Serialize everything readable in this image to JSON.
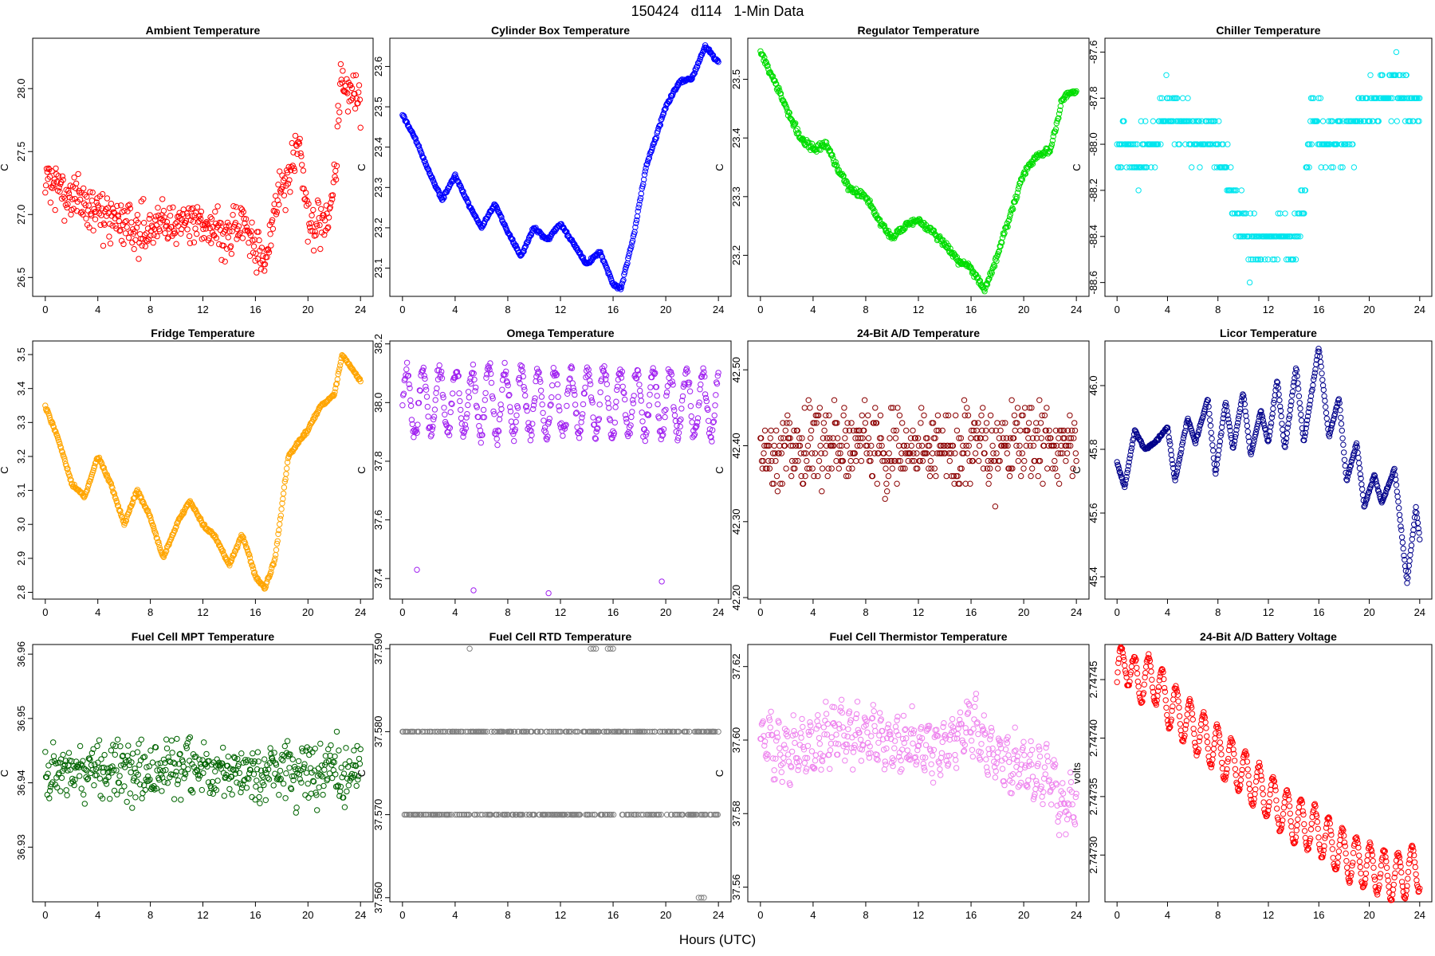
{
  "page": {
    "title": "150424   d114   1-Min Data",
    "x_axis_label": "Hours (UTC)"
  },
  "chart_data": [
    {
      "type": "scatter",
      "title": "Ambient Temperature",
      "ylabel": "C",
      "color": "#ff0000",
      "xlim": [
        0,
        24
      ],
      "xticks": [
        0,
        4,
        8,
        12,
        16,
        20,
        24
      ],
      "ylim": [
        26.35,
        28.4
      ],
      "yticks": [
        26.5,
        27.0,
        27.5,
        28.0
      ],
      "ydigits": 1,
      "anchors": [
        [
          0,
          27.3
        ],
        [
          1,
          27.2
        ],
        [
          2,
          27.15
        ],
        [
          3,
          27.1
        ],
        [
          4,
          27.0
        ],
        [
          5,
          26.95
        ],
        [
          6,
          26.95
        ],
        [
          7,
          26.9
        ],
        [
          8,
          26.9
        ],
        [
          9,
          26.95
        ],
        [
          10,
          26.9
        ],
        [
          11,
          26.95
        ],
        [
          12,
          26.95
        ],
        [
          13,
          26.9
        ],
        [
          14,
          26.85
        ],
        [
          15,
          26.9
        ],
        [
          16,
          26.75
        ],
        [
          16.8,
          26.6
        ],
        [
          17.5,
          27.1
        ],
        [
          18.5,
          27.3
        ],
        [
          19.3,
          27.6
        ],
        [
          20,
          26.95
        ],
        [
          21,
          26.9
        ],
        [
          21.6,
          27.0
        ],
        [
          22.2,
          27.5
        ],
        [
          22.5,
          28.1
        ],
        [
          23,
          27.95
        ],
        [
          24,
          27.9
        ]
      ],
      "noise": 0.18,
      "jitter": 0
    },
    {
      "type": "scatter",
      "title": "Cylinder Box Temperature",
      "ylabel": "C",
      "color": "#0000ff",
      "xlim": [
        0,
        24
      ],
      "xticks": [
        0,
        4,
        8,
        12,
        16,
        20,
        24
      ],
      "ylim": [
        23.03,
        23.67
      ],
      "yticks": [
        23.1,
        23.2,
        23.3,
        23.4,
        23.5,
        23.6
      ],
      "ydigits": 1,
      "anchors": [
        [
          0,
          23.48
        ],
        [
          1,
          23.42
        ],
        [
          2,
          23.34
        ],
        [
          3,
          23.27
        ],
        [
          4,
          23.33
        ],
        [
          5,
          23.26
        ],
        [
          6,
          23.2
        ],
        [
          7,
          23.26
        ],
        [
          8,
          23.19
        ],
        [
          9,
          23.13
        ],
        [
          10,
          23.2
        ],
        [
          11,
          23.17
        ],
        [
          12,
          23.21
        ],
        [
          13,
          23.16
        ],
        [
          14,
          23.11
        ],
        [
          15,
          23.14
        ],
        [
          16,
          23.06
        ],
        [
          16.6,
          23.05
        ],
        [
          17.5,
          23.17
        ],
        [
          18.5,
          23.35
        ],
        [
          20,
          23.5
        ],
        [
          21,
          23.56
        ],
        [
          22,
          23.57
        ],
        [
          23,
          23.65
        ],
        [
          24,
          23.61
        ]
      ],
      "noise": 0.004,
      "jitter": 0
    },
    {
      "type": "scatter",
      "title": "Regulator Temperature",
      "ylabel": "C",
      "color": "#00dd00",
      "xlim": [
        0,
        24
      ],
      "xticks": [
        0,
        4,
        8,
        12,
        16,
        20,
        24
      ],
      "ylim": [
        23.13,
        23.57
      ],
      "yticks": [
        23.2,
        23.3,
        23.4,
        23.5
      ],
      "ydigits": 1,
      "anchors": [
        [
          0,
          23.55
        ],
        [
          1,
          23.5
        ],
        [
          2,
          23.45
        ],
        [
          3,
          23.4
        ],
        [
          4,
          23.38
        ],
        [
          5,
          23.39
        ],
        [
          6,
          23.34
        ],
        [
          7,
          23.31
        ],
        [
          8,
          23.3
        ],
        [
          9,
          23.26
        ],
        [
          10,
          23.23
        ],
        [
          11,
          23.25
        ],
        [
          12,
          23.26
        ],
        [
          13,
          23.24
        ],
        [
          14,
          23.22
        ],
        [
          15,
          23.19
        ],
        [
          16,
          23.18
        ],
        [
          17,
          23.14
        ],
        [
          18,
          23.2
        ],
        [
          19,
          23.27
        ],
        [
          20,
          23.34
        ],
        [
          21,
          23.37
        ],
        [
          22,
          23.38
        ],
        [
          23,
          23.47
        ],
        [
          24,
          23.48
        ]
      ],
      "noise": 0.006,
      "jitter": 0
    },
    {
      "type": "scatter",
      "title": "Chiller Temperature",
      "ylabel": "C",
      "color": "#00e5ee",
      "xlim": [
        0,
        24
      ],
      "xticks": [
        0,
        4,
        8,
        12,
        16,
        20,
        24
      ],
      "ylim": [
        -88.66,
        -87.54
      ],
      "yticks": [
        -88.6,
        -88.4,
        -88.2,
        -88.0,
        -87.8,
        -87.6
      ],
      "ydigits": 1,
      "anchors": [
        [
          0,
          -88.0
        ],
        [
          2,
          -88.05
        ],
        [
          4,
          -87.85
        ],
        [
          6,
          -87.95
        ],
        [
          8,
          -88.0
        ],
        [
          9.5,
          -88.3
        ],
        [
          11,
          -88.45
        ],
        [
          13,
          -88.4
        ],
        [
          14.5,
          -88.4
        ],
        [
          15.5,
          -87.85
        ],
        [
          16.5,
          -88.0
        ],
        [
          18,
          -87.95
        ],
        [
          20,
          -87.85
        ],
        [
          22,
          -87.75
        ],
        [
          24,
          -87.85
        ]
      ],
      "noise": 0.11,
      "jitter": 0,
      "quantize": 0.1
    },
    {
      "type": "scatter",
      "title": "Fridge Temperature",
      "ylabel": "C",
      "color": "#ffa500",
      "xlim": [
        0,
        24
      ],
      "xticks": [
        0,
        4,
        8,
        12,
        16,
        20,
        24
      ],
      "ylim": [
        2.78,
        3.54
      ],
      "yticks": [
        2.8,
        2.9,
        3.0,
        3.1,
        3.2,
        3.3,
        3.4,
        3.5
      ],
      "ydigits": 1,
      "anchors": [
        [
          0,
          3.35
        ],
        [
          1,
          3.25
        ],
        [
          2,
          3.12
        ],
        [
          3,
          3.08
        ],
        [
          4,
          3.2
        ],
        [
          5,
          3.12
        ],
        [
          6,
          3.0
        ],
        [
          7,
          3.1
        ],
        [
          8,
          3.02
        ],
        [
          9,
          2.9
        ],
        [
          10,
          3.0
        ],
        [
          11,
          3.07
        ],
        [
          12,
          3.0
        ],
        [
          13,
          2.96
        ],
        [
          14,
          2.88
        ],
        [
          15,
          2.97
        ],
        [
          16,
          2.85
        ],
        [
          16.7,
          2.81
        ],
        [
          17.5,
          2.9
        ],
        [
          18.5,
          3.2
        ],
        [
          20,
          3.28
        ],
        [
          21,
          3.35
        ],
        [
          22,
          3.38
        ],
        [
          22.6,
          3.5
        ],
        [
          23.5,
          3.45
        ],
        [
          24,
          3.42
        ]
      ],
      "noise": 0.005,
      "jitter": 0
    },
    {
      "type": "scatter",
      "title": "Omega Temperature",
      "ylabel": "C",
      "color": "#a020f0",
      "xlim": [
        0,
        24
      ],
      "xticks": [
        0,
        4,
        8,
        12,
        16,
        20,
        24
      ],
      "ylim": [
        37.33,
        38.21
      ],
      "yticks": [
        37.4,
        37.6,
        37.8,
        38.0,
        38.2
      ],
      "ydigits": 1,
      "anchors": [
        [
          0,
          38.0
        ],
        [
          24,
          38.0
        ]
      ],
      "wave": {
        "amp": 0.11,
        "period": 1.25
      },
      "noise": 0.03,
      "jitter": 0,
      "outliers": [
        [
          1.1,
          37.43
        ],
        [
          5.4,
          37.36
        ],
        [
          11.1,
          37.35
        ],
        [
          19.7,
          37.39
        ]
      ]
    },
    {
      "type": "scatter",
      "title": "24-Bit A/D Temperature",
      "ylabel": "C",
      "color": "#8b0000",
      "xlim": [
        0,
        24
      ],
      "xticks": [
        0,
        4,
        8,
        12,
        16,
        20,
        24
      ],
      "ylim": [
        42.198,
        42.538
      ],
      "yticks": [
        42.2,
        42.3,
        42.4,
        42.5
      ],
      "ydigits": 2,
      "anchors": [
        [
          0,
          42.4
        ],
        [
          24,
          42.4
        ]
      ],
      "noise": 0.05,
      "jitter": 0,
      "quantize": 0.01
    },
    {
      "type": "scatter",
      "title": "Licor Temperature",
      "ylabel": "C",
      "color": "#00008b",
      "xlim": [
        0,
        24
      ],
      "xticks": [
        0,
        4,
        8,
        12,
        16,
        20,
        24
      ],
      "ylim": [
        45.33,
        46.14
      ],
      "yticks": [
        45.4,
        45.6,
        45.8,
        46.0
      ],
      "ydigits": 1,
      "anchors": [
        [
          0,
          45.76
        ],
        [
          0.6,
          45.68
        ],
        [
          1.4,
          45.86
        ],
        [
          2.2,
          45.8
        ],
        [
          3,
          45.82
        ],
        [
          4,
          45.87
        ],
        [
          4.6,
          45.7
        ],
        [
          5.6,
          45.9
        ],
        [
          6.2,
          45.82
        ],
        [
          7.2,
          45.96
        ],
        [
          7.8,
          45.72
        ],
        [
          8.6,
          45.95
        ],
        [
          9.2,
          45.8
        ],
        [
          10,
          45.98
        ],
        [
          10.6,
          45.78
        ],
        [
          11.4,
          45.92
        ],
        [
          12,
          45.82
        ],
        [
          12.7,
          46.02
        ],
        [
          13.3,
          45.8
        ],
        [
          14.2,
          46.06
        ],
        [
          14.8,
          45.82
        ],
        [
          16,
          46.12
        ],
        [
          16.8,
          45.84
        ],
        [
          17.6,
          45.96
        ],
        [
          18.2,
          45.7
        ],
        [
          19,
          45.82
        ],
        [
          19.6,
          45.62
        ],
        [
          20.4,
          45.72
        ],
        [
          21,
          45.63
        ],
        [
          22,
          45.74
        ],
        [
          23,
          45.38
        ],
        [
          23.7,
          45.62
        ],
        [
          24,
          45.52
        ]
      ],
      "noise": 0.004,
      "jitter": 0
    },
    {
      "type": "scatter",
      "title": "Fuel Cell MPT Temperature",
      "ylabel": "C",
      "color": "#006400",
      "xlim": [
        0,
        24
      ],
      "xticks": [
        0,
        4,
        8,
        12,
        16,
        20,
        24
      ],
      "ylim": [
        36.9215,
        36.9615
      ],
      "yticks": [
        36.93,
        36.94,
        36.95,
        36.96
      ],
      "ydigits": 2,
      "anchors": [
        [
          0,
          36.942
        ],
        [
          24,
          36.942
        ]
      ],
      "noise": 0.0045,
      "jitter": 0
    },
    {
      "type": "scatter",
      "title": "Fuel Cell RTD Temperature",
      "ylabel": "C",
      "color": "#808080",
      "xlim": [
        0,
        24
      ],
      "xticks": [
        0,
        4,
        8,
        12,
        16,
        20,
        24
      ],
      "ylim": [
        37.5595,
        37.5905
      ],
      "yticks": [
        37.56,
        37.57,
        37.58,
        37.59
      ],
      "ydigits": 3,
      "levels": [
        37.57,
        37.58
      ],
      "outliers": [
        [
          5.1,
          37.59
        ],
        [
          14.3,
          37.59
        ],
        [
          14.5,
          37.59
        ],
        [
          14.7,
          37.59
        ],
        [
          15.6,
          37.59
        ],
        [
          15.8,
          37.59
        ],
        [
          16.0,
          37.59
        ],
        [
          22.5,
          37.56
        ],
        [
          22.7,
          37.56
        ],
        [
          22.9,
          37.56
        ],
        [
          23.6,
          37.58
        ]
      ]
    },
    {
      "type": "scatter",
      "title": "Fuel Cell Thermistor Temperature",
      "ylabel": "C",
      "color": "#ee82ee",
      "xlim": [
        0,
        24
      ],
      "xticks": [
        0,
        4,
        8,
        12,
        16,
        20,
        24
      ],
      "ylim": [
        37.556,
        37.626
      ],
      "yticks": [
        37.56,
        37.58,
        37.6,
        37.62
      ],
      "ydigits": 2,
      "anchors": [
        [
          0,
          37.6
        ],
        [
          2,
          37.597
        ],
        [
          4,
          37.598
        ],
        [
          6,
          37.603
        ],
        [
          8,
          37.601
        ],
        [
          10,
          37.6
        ],
        [
          12,
          37.598
        ],
        [
          14,
          37.598
        ],
        [
          16,
          37.605
        ],
        [
          18,
          37.595
        ],
        [
          20,
          37.592
        ],
        [
          22,
          37.59
        ],
        [
          23,
          37.58
        ],
        [
          24,
          37.585
        ]
      ],
      "wave": {
        "amp": 0.006,
        "period": 0.6
      },
      "noise": 0.004,
      "jitter": 0
    },
    {
      "type": "scatter",
      "title": "24-Bit A/D Battery Voltage",
      "ylabel": "volts",
      "color": "#ff0000",
      "xlim": [
        0,
        24
      ],
      "xticks": [
        0,
        4,
        8,
        12,
        16,
        20,
        24
      ],
      "ylim": [
        2.74726,
        2.74748
      ],
      "yticks": [
        2.7473,
        2.74735,
        2.7474,
        2.74745
      ],
      "ydigits": 5,
      "anchors": [
        [
          0,
          2.74745
        ],
        [
          0.7,
          2.74747
        ],
        [
          1.3,
          2.74745
        ],
        [
          2,
          2.74745
        ],
        [
          3,
          2.74745
        ],
        [
          4,
          2.74743
        ],
        [
          6,
          2.74741
        ],
        [
          8,
          2.74739
        ],
        [
          10,
          2.74737
        ],
        [
          12,
          2.74735
        ],
        [
          14,
          2.74733
        ],
        [
          16,
          2.74732
        ],
        [
          18,
          2.7473
        ],
        [
          20,
          2.74729
        ],
        [
          22,
          2.74728
        ],
        [
          24,
          2.74729
        ]
      ],
      "wave": {
        "amp": 2e-05,
        "period": 1.1
      },
      "noise": 2e-06,
      "jitter": 0
    }
  ]
}
